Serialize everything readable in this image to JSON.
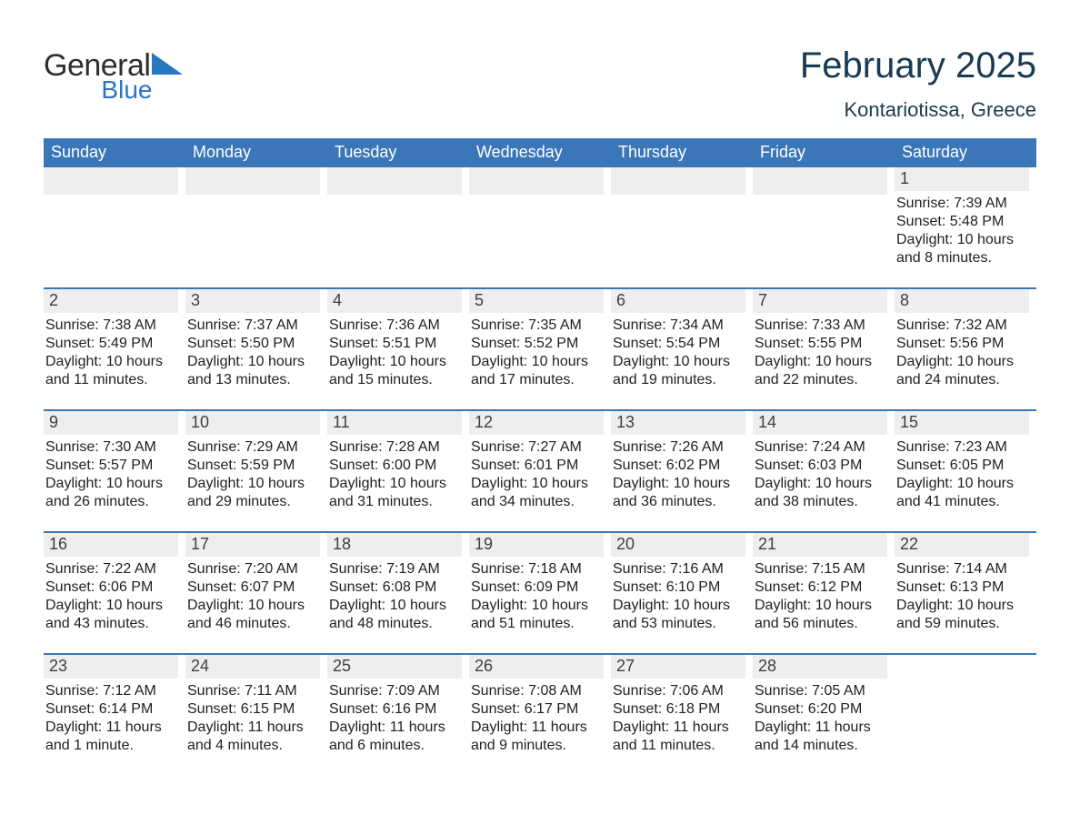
{
  "brand": {
    "name_part1": "General",
    "name_part2": "Blue",
    "part1_color": "#2e2e2e",
    "part2_color": "#2977c2",
    "icon_color": "#2977c2"
  },
  "title": "February 2025",
  "subtitle": "Kontariotissa, Greece",
  "colors": {
    "header_bg": "#3b77b8",
    "header_text": "#ffffff",
    "week_border": "#3b77b8",
    "daynum_bg": "#eeeeee",
    "daynum_text": "#3f3f3f",
    "body_text": "#1f1f1f",
    "title_text": "#193b52",
    "page_bg": "#ffffff"
  },
  "layout": {
    "type": "calendar",
    "columns": 7,
    "rows": 5,
    "title_fontsize": 40,
    "subtitle_fontsize": 22,
    "weekday_fontsize": 18,
    "daynum_fontsize": 18,
    "body_fontsize": 16
  },
  "weekdays": [
    "Sunday",
    "Monday",
    "Tuesday",
    "Wednesday",
    "Thursday",
    "Friday",
    "Saturday"
  ],
  "weeks": [
    [
      {
        "blank": true
      },
      {
        "blank": true
      },
      {
        "blank": true
      },
      {
        "blank": true
      },
      {
        "blank": true
      },
      {
        "blank": true
      },
      {
        "day": "1",
        "sunrise": "Sunrise: 7:39 AM",
        "sunset": "Sunset: 5:48 PM",
        "daylight": "Daylight: 10 hours and 8 minutes."
      }
    ],
    [
      {
        "day": "2",
        "sunrise": "Sunrise: 7:38 AM",
        "sunset": "Sunset: 5:49 PM",
        "daylight": "Daylight: 10 hours and 11 minutes."
      },
      {
        "day": "3",
        "sunrise": "Sunrise: 7:37 AM",
        "sunset": "Sunset: 5:50 PM",
        "daylight": "Daylight: 10 hours and 13 minutes."
      },
      {
        "day": "4",
        "sunrise": "Sunrise: 7:36 AM",
        "sunset": "Sunset: 5:51 PM",
        "daylight": "Daylight: 10 hours and 15 minutes."
      },
      {
        "day": "5",
        "sunrise": "Sunrise: 7:35 AM",
        "sunset": "Sunset: 5:52 PM",
        "daylight": "Daylight: 10 hours and 17 minutes."
      },
      {
        "day": "6",
        "sunrise": "Sunrise: 7:34 AM",
        "sunset": "Sunset: 5:54 PM",
        "daylight": "Daylight: 10 hours and 19 minutes."
      },
      {
        "day": "7",
        "sunrise": "Sunrise: 7:33 AM",
        "sunset": "Sunset: 5:55 PM",
        "daylight": "Daylight: 10 hours and 22 minutes."
      },
      {
        "day": "8",
        "sunrise": "Sunrise: 7:32 AM",
        "sunset": "Sunset: 5:56 PM",
        "daylight": "Daylight: 10 hours and 24 minutes."
      }
    ],
    [
      {
        "day": "9",
        "sunrise": "Sunrise: 7:30 AM",
        "sunset": "Sunset: 5:57 PM",
        "daylight": "Daylight: 10 hours and 26 minutes."
      },
      {
        "day": "10",
        "sunrise": "Sunrise: 7:29 AM",
        "sunset": "Sunset: 5:59 PM",
        "daylight": "Daylight: 10 hours and 29 minutes."
      },
      {
        "day": "11",
        "sunrise": "Sunrise: 7:28 AM",
        "sunset": "Sunset: 6:00 PM",
        "daylight": "Daylight: 10 hours and 31 minutes."
      },
      {
        "day": "12",
        "sunrise": "Sunrise: 7:27 AM",
        "sunset": "Sunset: 6:01 PM",
        "daylight": "Daylight: 10 hours and 34 minutes."
      },
      {
        "day": "13",
        "sunrise": "Sunrise: 7:26 AM",
        "sunset": "Sunset: 6:02 PM",
        "daylight": "Daylight: 10 hours and 36 minutes."
      },
      {
        "day": "14",
        "sunrise": "Sunrise: 7:24 AM",
        "sunset": "Sunset: 6:03 PM",
        "daylight": "Daylight: 10 hours and 38 minutes."
      },
      {
        "day": "15",
        "sunrise": "Sunrise: 7:23 AM",
        "sunset": "Sunset: 6:05 PM",
        "daylight": "Daylight: 10 hours and 41 minutes."
      }
    ],
    [
      {
        "day": "16",
        "sunrise": "Sunrise: 7:22 AM",
        "sunset": "Sunset: 6:06 PM",
        "daylight": "Daylight: 10 hours and 43 minutes."
      },
      {
        "day": "17",
        "sunrise": "Sunrise: 7:20 AM",
        "sunset": "Sunset: 6:07 PM",
        "daylight": "Daylight: 10 hours and 46 minutes."
      },
      {
        "day": "18",
        "sunrise": "Sunrise: 7:19 AM",
        "sunset": "Sunset: 6:08 PM",
        "daylight": "Daylight: 10 hours and 48 minutes."
      },
      {
        "day": "19",
        "sunrise": "Sunrise: 7:18 AM",
        "sunset": "Sunset: 6:09 PM",
        "daylight": "Daylight: 10 hours and 51 minutes."
      },
      {
        "day": "20",
        "sunrise": "Sunrise: 7:16 AM",
        "sunset": "Sunset: 6:10 PM",
        "daylight": "Daylight: 10 hours and 53 minutes."
      },
      {
        "day": "21",
        "sunrise": "Sunrise: 7:15 AM",
        "sunset": "Sunset: 6:12 PM",
        "daylight": "Daylight: 10 hours and 56 minutes."
      },
      {
        "day": "22",
        "sunrise": "Sunrise: 7:14 AM",
        "sunset": "Sunset: 6:13 PM",
        "daylight": "Daylight: 10 hours and 59 minutes."
      }
    ],
    [
      {
        "day": "23",
        "sunrise": "Sunrise: 7:12 AM",
        "sunset": "Sunset: 6:14 PM",
        "daylight": "Daylight: 11 hours and 1 minute."
      },
      {
        "day": "24",
        "sunrise": "Sunrise: 7:11 AM",
        "sunset": "Sunset: 6:15 PM",
        "daylight": "Daylight: 11 hours and 4 minutes."
      },
      {
        "day": "25",
        "sunrise": "Sunrise: 7:09 AM",
        "sunset": "Sunset: 6:16 PM",
        "daylight": "Daylight: 11 hours and 6 minutes."
      },
      {
        "day": "26",
        "sunrise": "Sunrise: 7:08 AM",
        "sunset": "Sunset: 6:17 PM",
        "daylight": "Daylight: 11 hours and 9 minutes."
      },
      {
        "day": "27",
        "sunrise": "Sunrise: 7:06 AM",
        "sunset": "Sunset: 6:18 PM",
        "daylight": "Daylight: 11 hours and 11 minutes."
      },
      {
        "day": "28",
        "sunrise": "Sunrise: 7:05 AM",
        "sunset": "Sunset: 6:20 PM",
        "daylight": "Daylight: 11 hours and 14 minutes."
      },
      {
        "blank": true,
        "nobg": true
      }
    ]
  ]
}
